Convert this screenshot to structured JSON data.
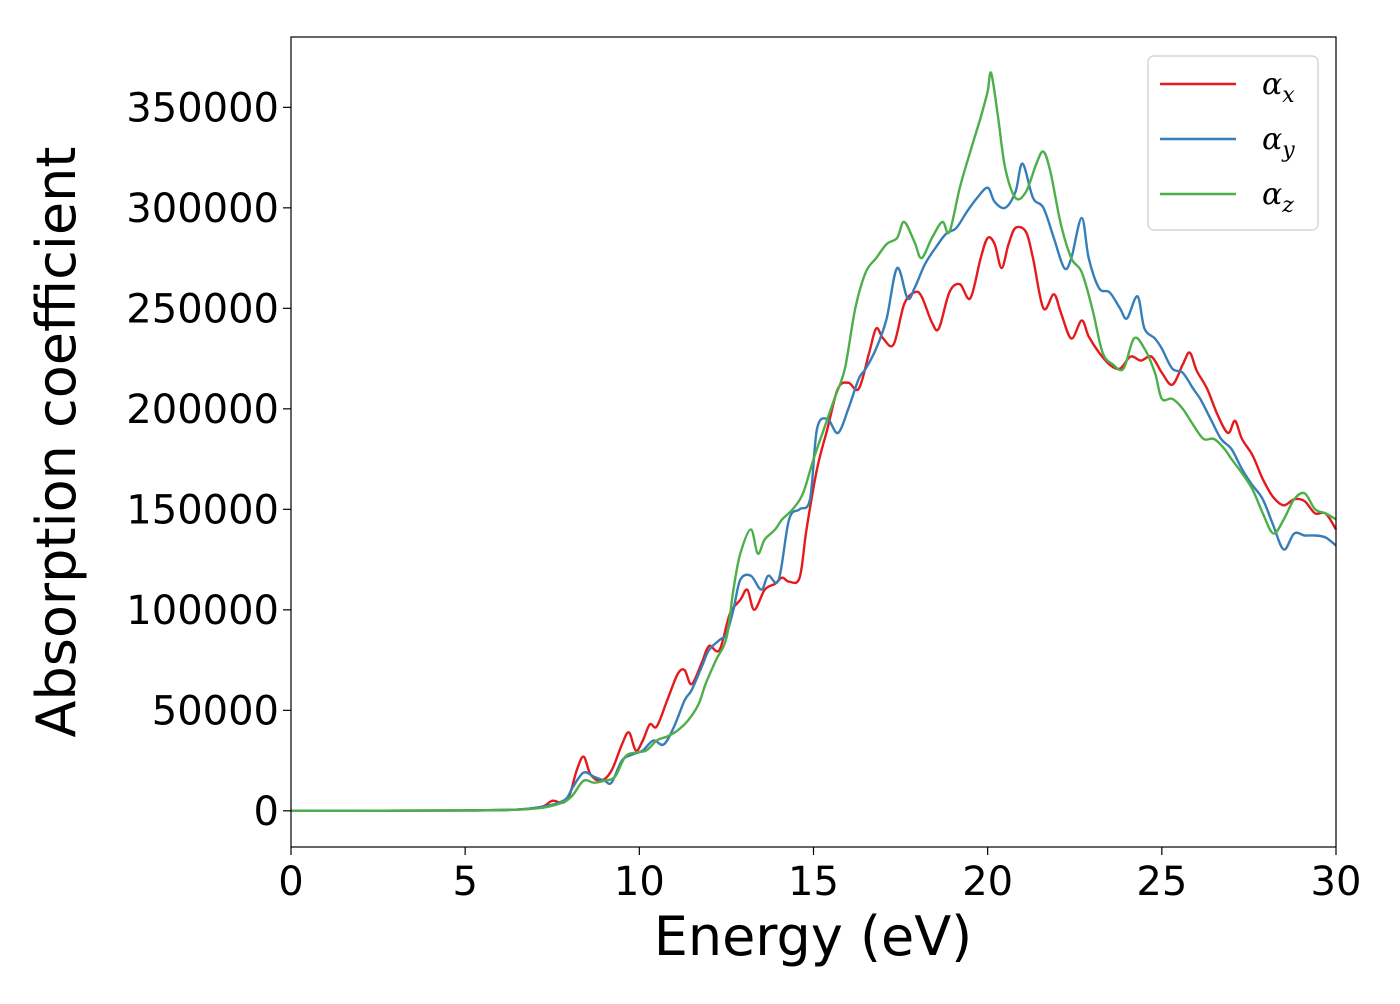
{
  "chart_data": {
    "type": "line",
    "xlabel": "Energy (eV)",
    "ylabel": "Absorption coefficient",
    "xlim": [
      0,
      30
    ],
    "ylim": [
      -18000,
      385000
    ],
    "xticks": [
      0,
      5,
      10,
      15,
      20,
      25,
      30
    ],
    "yticks": [
      0,
      50000,
      100000,
      150000,
      200000,
      250000,
      300000,
      350000
    ],
    "grid": false,
    "legend_position": "top-right",
    "series": [
      {
        "name": "αx",
        "symbol": "α",
        "subscript": "x",
        "color": "#e41a1c",
        "points": [
          [
            0,
            0
          ],
          [
            5,
            200
          ],
          [
            6.5,
            600
          ],
          [
            7.2,
            2000
          ],
          [
            7.5,
            5000
          ],
          [
            7.8,
            4000
          ],
          [
            8.0,
            8000
          ],
          [
            8.2,
            20000
          ],
          [
            8.4,
            27000
          ],
          [
            8.6,
            18000
          ],
          [
            8.9,
            15000
          ],
          [
            9.2,
            20000
          ],
          [
            9.5,
            33000
          ],
          [
            9.7,
            39000
          ],
          [
            9.9,
            30000
          ],
          [
            10.1,
            35000
          ],
          [
            10.3,
            43000
          ],
          [
            10.5,
            42000
          ],
          [
            10.8,
            55000
          ],
          [
            11.1,
            68000
          ],
          [
            11.3,
            70000
          ],
          [
            11.5,
            63000
          ],
          [
            11.8,
            74000
          ],
          [
            12.0,
            82000
          ],
          [
            12.3,
            80000
          ],
          [
            12.6,
            98000
          ],
          [
            12.9,
            105000
          ],
          [
            13.1,
            110000
          ],
          [
            13.3,
            100000
          ],
          [
            13.6,
            110000
          ],
          [
            13.9,
            113000
          ],
          [
            14.1,
            116000
          ],
          [
            14.3,
            114000
          ],
          [
            14.6,
            116000
          ],
          [
            14.8,
            140000
          ],
          [
            15.1,
            170000
          ],
          [
            15.4,
            190000
          ],
          [
            15.7,
            210000
          ],
          [
            16.0,
            213000
          ],
          [
            16.3,
            210000
          ],
          [
            16.6,
            228000
          ],
          [
            16.8,
            240000
          ],
          [
            17.0,
            235000
          ],
          [
            17.3,
            232000
          ],
          [
            17.6,
            252000
          ],
          [
            17.9,
            258000
          ],
          [
            18.1,
            256000
          ],
          [
            18.4,
            243000
          ],
          [
            18.6,
            240000
          ],
          [
            18.9,
            258000
          ],
          [
            19.2,
            262000
          ],
          [
            19.5,
            255000
          ],
          [
            19.8,
            275000
          ],
          [
            20.0,
            285000
          ],
          [
            20.2,
            282000
          ],
          [
            20.4,
            270000
          ],
          [
            20.6,
            282000
          ],
          [
            20.8,
            290000
          ],
          [
            21.1,
            288000
          ],
          [
            21.3,
            275000
          ],
          [
            21.6,
            250000
          ],
          [
            21.9,
            257000
          ],
          [
            22.1,
            248000
          ],
          [
            22.4,
            235000
          ],
          [
            22.7,
            244000
          ],
          [
            22.9,
            236000
          ],
          [
            23.2,
            228000
          ],
          [
            23.5,
            222000
          ],
          [
            23.8,
            220000
          ],
          [
            24.1,
            226000
          ],
          [
            24.4,
            224000
          ],
          [
            24.7,
            226000
          ],
          [
            25.0,
            218000
          ],
          [
            25.3,
            212000
          ],
          [
            25.6,
            222000
          ],
          [
            25.8,
            228000
          ],
          [
            26.0,
            219000
          ],
          [
            26.3,
            210000
          ],
          [
            26.6,
            197000
          ],
          [
            26.9,
            188000
          ],
          [
            27.1,
            194000
          ],
          [
            27.3,
            185000
          ],
          [
            27.6,
            177000
          ],
          [
            27.9,
            165000
          ],
          [
            28.2,
            156000
          ],
          [
            28.5,
            152000
          ],
          [
            28.8,
            155000
          ],
          [
            29.1,
            154000
          ],
          [
            29.4,
            148000
          ],
          [
            29.7,
            148000
          ],
          [
            30.0,
            140000
          ]
        ]
      },
      {
        "name": "αy",
        "symbol": "α",
        "subscript": "y",
        "color": "#377eb8",
        "points": [
          [
            0,
            0
          ],
          [
            5,
            200
          ],
          [
            6.5,
            600
          ],
          [
            7.2,
            2000
          ],
          [
            7.6,
            3500
          ],
          [
            7.9,
            6000
          ],
          [
            8.1,
            12000
          ],
          [
            8.4,
            19000
          ],
          [
            8.7,
            17000
          ],
          [
            9.0,
            15000
          ],
          [
            9.2,
            14000
          ],
          [
            9.5,
            25000
          ],
          [
            9.8,
            28000
          ],
          [
            10.1,
            30000
          ],
          [
            10.4,
            35000
          ],
          [
            10.7,
            33000
          ],
          [
            11.0,
            42000
          ],
          [
            11.3,
            55000
          ],
          [
            11.5,
            60000
          ],
          [
            11.8,
            72000
          ],
          [
            12.0,
            80000
          ],
          [
            12.3,
            85000
          ],
          [
            12.5,
            88000
          ],
          [
            12.7,
            100000
          ],
          [
            12.9,
            115000
          ],
          [
            13.2,
            117000
          ],
          [
            13.5,
            110000
          ],
          [
            13.7,
            117000
          ],
          [
            14.0,
            115000
          ],
          [
            14.3,
            145000
          ],
          [
            14.6,
            150000
          ],
          [
            14.9,
            155000
          ],
          [
            15.1,
            190000
          ],
          [
            15.4,
            195000
          ],
          [
            15.7,
            188000
          ],
          [
            16.0,
            200000
          ],
          [
            16.3,
            215000
          ],
          [
            16.5,
            220000
          ],
          [
            16.8,
            230000
          ],
          [
            17.1,
            245000
          ],
          [
            17.4,
            270000
          ],
          [
            17.7,
            255000
          ],
          [
            17.9,
            260000
          ],
          [
            18.2,
            272000
          ],
          [
            18.5,
            280000
          ],
          [
            18.8,
            287000
          ],
          [
            19.1,
            290000
          ],
          [
            19.4,
            298000
          ],
          [
            19.7,
            305000
          ],
          [
            20.0,
            310000
          ],
          [
            20.2,
            303000
          ],
          [
            20.5,
            300000
          ],
          [
            20.8,
            308000
          ],
          [
            21.0,
            322000
          ],
          [
            21.3,
            305000
          ],
          [
            21.6,
            300000
          ],
          [
            21.9,
            285000
          ],
          [
            22.2,
            270000
          ],
          [
            22.4,
            275000
          ],
          [
            22.7,
            295000
          ],
          [
            22.9,
            275000
          ],
          [
            23.2,
            260000
          ],
          [
            23.5,
            258000
          ],
          [
            23.8,
            250000
          ],
          [
            24.0,
            245000
          ],
          [
            24.3,
            256000
          ],
          [
            24.5,
            240000
          ],
          [
            24.8,
            235000
          ],
          [
            25.0,
            230000
          ],
          [
            25.3,
            220000
          ],
          [
            25.6,
            218000
          ],
          [
            25.9,
            210000
          ],
          [
            26.1,
            205000
          ],
          [
            26.4,
            195000
          ],
          [
            26.7,
            185000
          ],
          [
            27.0,
            180000
          ],
          [
            27.3,
            170000
          ],
          [
            27.6,
            162000
          ],
          [
            27.9,
            155000
          ],
          [
            28.2,
            142000
          ],
          [
            28.5,
            130000
          ],
          [
            28.8,
            138000
          ],
          [
            29.1,
            137000
          ],
          [
            29.4,
            137000
          ],
          [
            29.7,
            136000
          ],
          [
            30.0,
            132000
          ]
        ]
      },
      {
        "name": "αz",
        "symbol": "α",
        "subscript": "z",
        "color": "#4daf4a",
        "points": [
          [
            0,
            0
          ],
          [
            5,
            200
          ],
          [
            6.5,
            600
          ],
          [
            7.2,
            1500
          ],
          [
            7.6,
            3000
          ],
          [
            7.9,
            5000
          ],
          [
            8.1,
            8000
          ],
          [
            8.4,
            15000
          ],
          [
            8.7,
            14000
          ],
          [
            9.0,
            15000
          ],
          [
            9.3,
            17000
          ],
          [
            9.6,
            27000
          ],
          [
            9.9,
            29000
          ],
          [
            10.2,
            30000
          ],
          [
            10.5,
            35000
          ],
          [
            10.8,
            37000
          ],
          [
            11.1,
            40000
          ],
          [
            11.4,
            45000
          ],
          [
            11.7,
            53000
          ],
          [
            11.9,
            63000
          ],
          [
            12.2,
            75000
          ],
          [
            12.5,
            86000
          ],
          [
            12.7,
            110000
          ],
          [
            12.9,
            128000
          ],
          [
            13.2,
            140000
          ],
          [
            13.4,
            128000
          ],
          [
            13.6,
            135000
          ],
          [
            13.9,
            140000
          ],
          [
            14.1,
            145000
          ],
          [
            14.4,
            150000
          ],
          [
            14.7,
            158000
          ],
          [
            15.0,
            175000
          ],
          [
            15.3,
            190000
          ],
          [
            15.6,
            205000
          ],
          [
            15.9,
            220000
          ],
          [
            16.2,
            250000
          ],
          [
            16.5,
            268000
          ],
          [
            16.8,
            275000
          ],
          [
            17.1,
            282000
          ],
          [
            17.4,
            285000
          ],
          [
            17.6,
            293000
          ],
          [
            17.9,
            283000
          ],
          [
            18.1,
            275000
          ],
          [
            18.4,
            285000
          ],
          [
            18.7,
            293000
          ],
          [
            18.9,
            288000
          ],
          [
            19.2,
            310000
          ],
          [
            19.5,
            328000
          ],
          [
            19.8,
            345000
          ],
          [
            20.0,
            358000
          ],
          [
            20.1,
            367000
          ],
          [
            20.3,
            345000
          ],
          [
            20.5,
            320000
          ],
          [
            20.8,
            305000
          ],
          [
            21.1,
            308000
          ],
          [
            21.4,
            322000
          ],
          [
            21.6,
            328000
          ],
          [
            21.8,
            318000
          ],
          [
            22.1,
            292000
          ],
          [
            22.4,
            275000
          ],
          [
            22.7,
            268000
          ],
          [
            23.0,
            250000
          ],
          [
            23.3,
            228000
          ],
          [
            23.6,
            222000
          ],
          [
            23.9,
            220000
          ],
          [
            24.2,
            235000
          ],
          [
            24.5,
            230000
          ],
          [
            24.8,
            218000
          ],
          [
            25.0,
            205000
          ],
          [
            25.3,
            205000
          ],
          [
            25.6,
            200000
          ],
          [
            25.9,
            192000
          ],
          [
            26.2,
            185000
          ],
          [
            26.5,
            185000
          ],
          [
            26.8,
            180000
          ],
          [
            27.0,
            175000
          ],
          [
            27.3,
            168000
          ],
          [
            27.6,
            160000
          ],
          [
            27.9,
            148000
          ],
          [
            28.2,
            138000
          ],
          [
            28.5,
            145000
          ],
          [
            28.8,
            155000
          ],
          [
            29.1,
            158000
          ],
          [
            29.4,
            150000
          ],
          [
            29.7,
            148000
          ],
          [
            30.0,
            145000
          ]
        ]
      }
    ]
  }
}
